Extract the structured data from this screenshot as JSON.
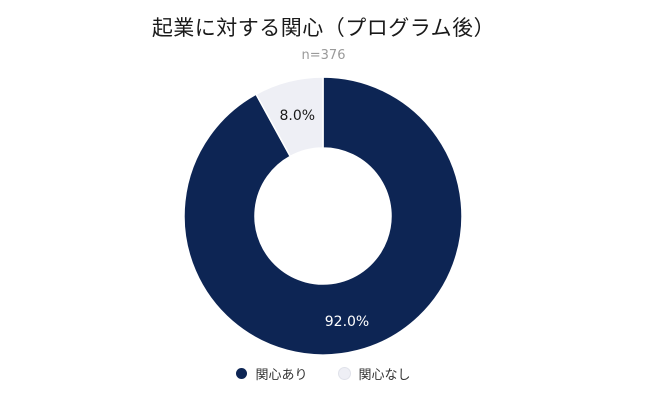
{
  "chart_data": {
    "type": "pie",
    "title": "起業に対する関心（プログラム後）",
    "subtitle": "n=376",
    "slices": [
      {
        "label": "関心あり",
        "value": 92.0,
        "value_label": "92.0%",
        "color": "#0d2554"
      },
      {
        "label": "関心なし",
        "value": 8.0,
        "value_label": "8.0%",
        "color": "#eeeff5"
      }
    ],
    "donut": true,
    "legend_position": "bottom"
  }
}
